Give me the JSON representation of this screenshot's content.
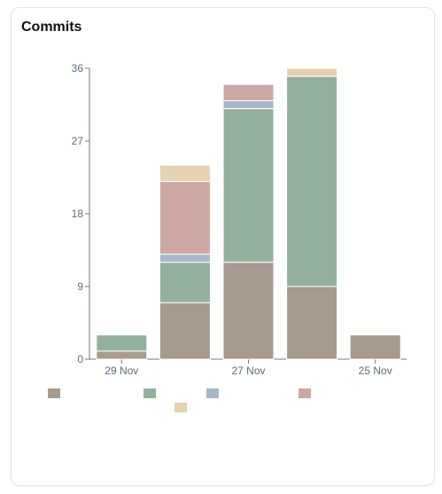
{
  "card": {
    "title": "Commits"
  },
  "chart_data": {
    "type": "bar",
    "stacked": true,
    "title": "Commits",
    "xlabel": "",
    "ylabel": "",
    "ylim": [
      0,
      36
    ],
    "yticks": [
      0,
      9,
      18,
      27,
      36
    ],
    "x_tick_labels": [
      "29 Nov",
      "",
      "27 Nov",
      "",
      "25 Nov"
    ],
    "categories": [
      "",
      "",
      "",
      "",
      ""
    ],
    "grid": false,
    "legend_placement": "bottom",
    "series": [
      {
        "color": "#a69b8e",
        "values": [
          1,
          7,
          12,
          9,
          3
        ]
      },
      {
        "color": "#93b09e",
        "values": [
          2,
          5,
          19,
          26,
          0
        ]
      },
      {
        "color": "#a8b7c8",
        "values": [
          0,
          1,
          1,
          0,
          0
        ]
      },
      {
        "color": "#cda8a2",
        "values": [
          0,
          9,
          2,
          0,
          0
        ]
      },
      {
        "color": "#e4d2b2",
        "values": [
          0,
          2,
          0,
          1,
          0
        ]
      }
    ]
  }
}
